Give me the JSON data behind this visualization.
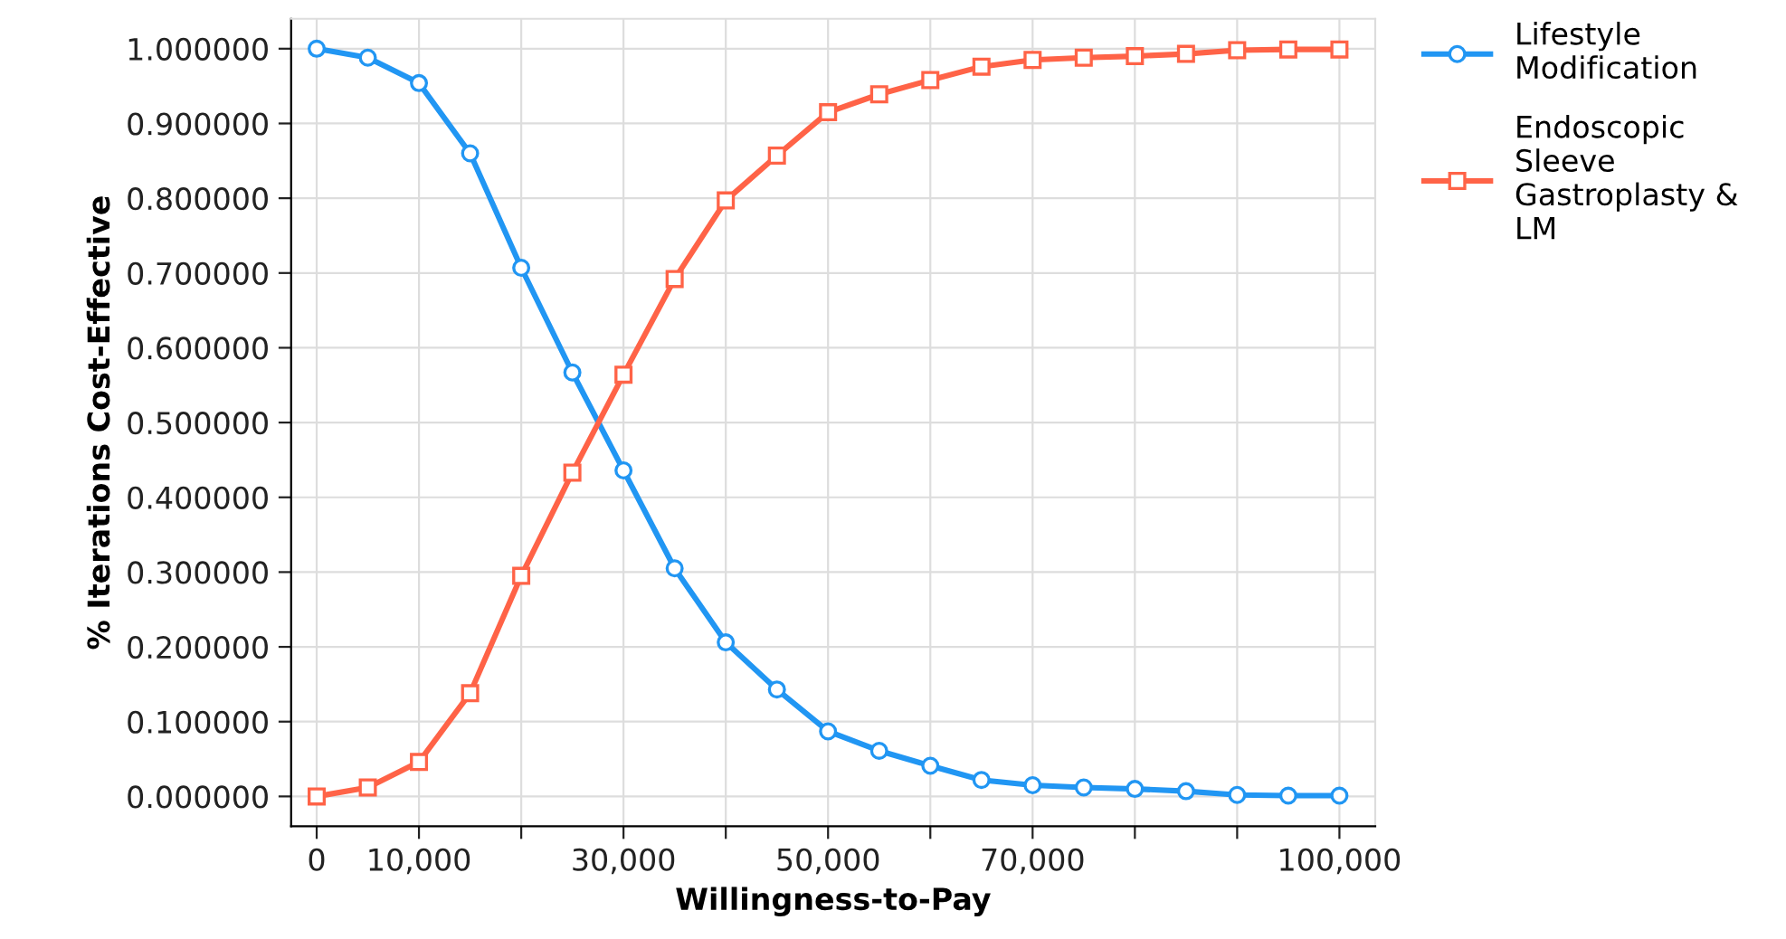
{
  "chart_data": {
    "type": "line",
    "xlabel": "Willingness-to-Pay",
    "ylabel": "% Iterations Cost-Effective",
    "x": [
      0,
      5000,
      10000,
      15000,
      20000,
      25000,
      30000,
      35000,
      40000,
      45000,
      50000,
      55000,
      60000,
      65000,
      70000,
      75000,
      80000,
      85000,
      90000,
      95000,
      100000
    ],
    "series": [
      {
        "name": "Lifestyle\nModification",
        "color": "#2196f3",
        "marker": "circle",
        "values": [
          1.0,
          0.988,
          0.954,
          0.86,
          0.707,
          0.567,
          0.436,
          0.305,
          0.206,
          0.143,
          0.087,
          0.061,
          0.041,
          0.022,
          0.015,
          0.012,
          0.01,
          0.007,
          0.002,
          0.001,
          0.001
        ]
      },
      {
        "name": "Endoscopic\nSleeve\nGastroplasty &\nLM",
        "color": "#ff6347",
        "marker": "square",
        "values": [
          0.0,
          0.012,
          0.046,
          0.138,
          0.295,
          0.433,
          0.564,
          0.692,
          0.797,
          0.857,
          0.915,
          0.939,
          0.958,
          0.976,
          0.985,
          0.988,
          0.99,
          0.993,
          0.998,
          0.999,
          0.999
        ]
      }
    ],
    "xlim": [
      -2500,
      103500
    ],
    "ylim": [
      -0.04,
      1.04
    ],
    "xticks": [
      0,
      {
        "value": 10000,
        "label": "10,000"
      },
      {
        "value": 20000,
        "label": null
      },
      {
        "value": 30000,
        "label": "30,000"
      },
      {
        "value": 40000,
        "label": null
      },
      {
        "value": 50000,
        "label": "50,000"
      },
      {
        "value": 60000,
        "label": null
      },
      {
        "value": 70000,
        "label": "70,000"
      },
      {
        "value": 80000,
        "label": null
      },
      {
        "value": 90000,
        "label": null
      },
      {
        "value": 100000,
        "label": "100,000"
      }
    ],
    "yticks": [
      {
        "value": 0,
        "label": "0.000000"
      },
      {
        "value": 0.1,
        "label": "0.100000"
      },
      {
        "value": 0.2,
        "label": "0.200000"
      },
      {
        "value": 0.3,
        "label": "0.300000"
      },
      {
        "value": 0.4,
        "label": "0.400000"
      },
      {
        "value": 0.5,
        "label": "0.500000"
      },
      {
        "value": 0.6,
        "label": "0.600000"
      },
      {
        "value": 0.7,
        "label": "0.700000"
      },
      {
        "value": 0.8,
        "label": "0.800000"
      },
      {
        "value": 0.9,
        "label": "0.900000"
      },
      {
        "value": 1.0,
        "label": "1.000000"
      }
    ],
    "grid": true,
    "legend": "top right",
    "line_style": "solid"
  }
}
